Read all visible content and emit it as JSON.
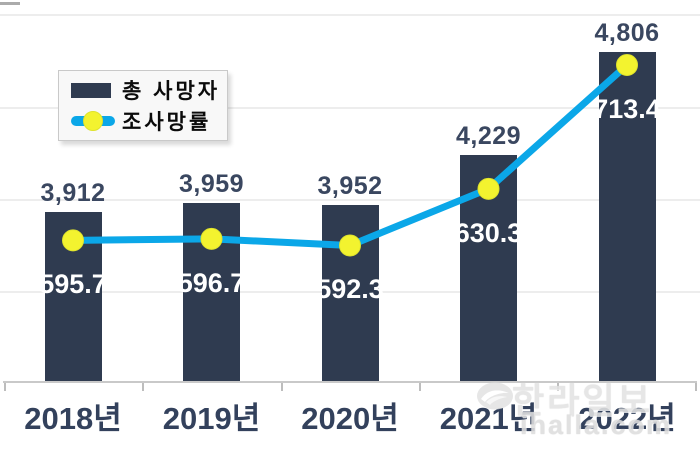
{
  "chart_data": {
    "type": "combo",
    "categories": [
      "2018년",
      "2019년",
      "2020년",
      "2021년",
      "2022년"
    ],
    "series": [
      {
        "name": "총 사망자",
        "type": "bar",
        "values": [
          3912,
          3959,
          3952,
          4229,
          4806
        ],
        "labels": [
          "3,912",
          "3,959",
          "3,952",
          "4,229",
          "4,806"
        ],
        "color": "#2f3b50",
        "label_color": "#3a4760",
        "ylim": [
          2950,
          5100
        ]
      },
      {
        "name": "조사망률",
        "type": "line",
        "values": [
          595.7,
          596.7,
          592.3,
          630.3,
          713.4
        ],
        "labels": [
          "595.7",
          "596.7",
          "592.3",
          "630.3",
          "713.4"
        ],
        "color": "#0ba7e8",
        "marker_color": "#f3f32f",
        "label_color": "#ffffff",
        "ylim": [
          500,
          757
        ]
      }
    ],
    "legend": {
      "position": "top-left",
      "entries": [
        "총 사망자",
        "조사망률"
      ]
    },
    "grid": true,
    "x_axis_color": "#33415c"
  },
  "watermark": {
    "brand": "한라일보",
    "site": "ihalla.com"
  }
}
